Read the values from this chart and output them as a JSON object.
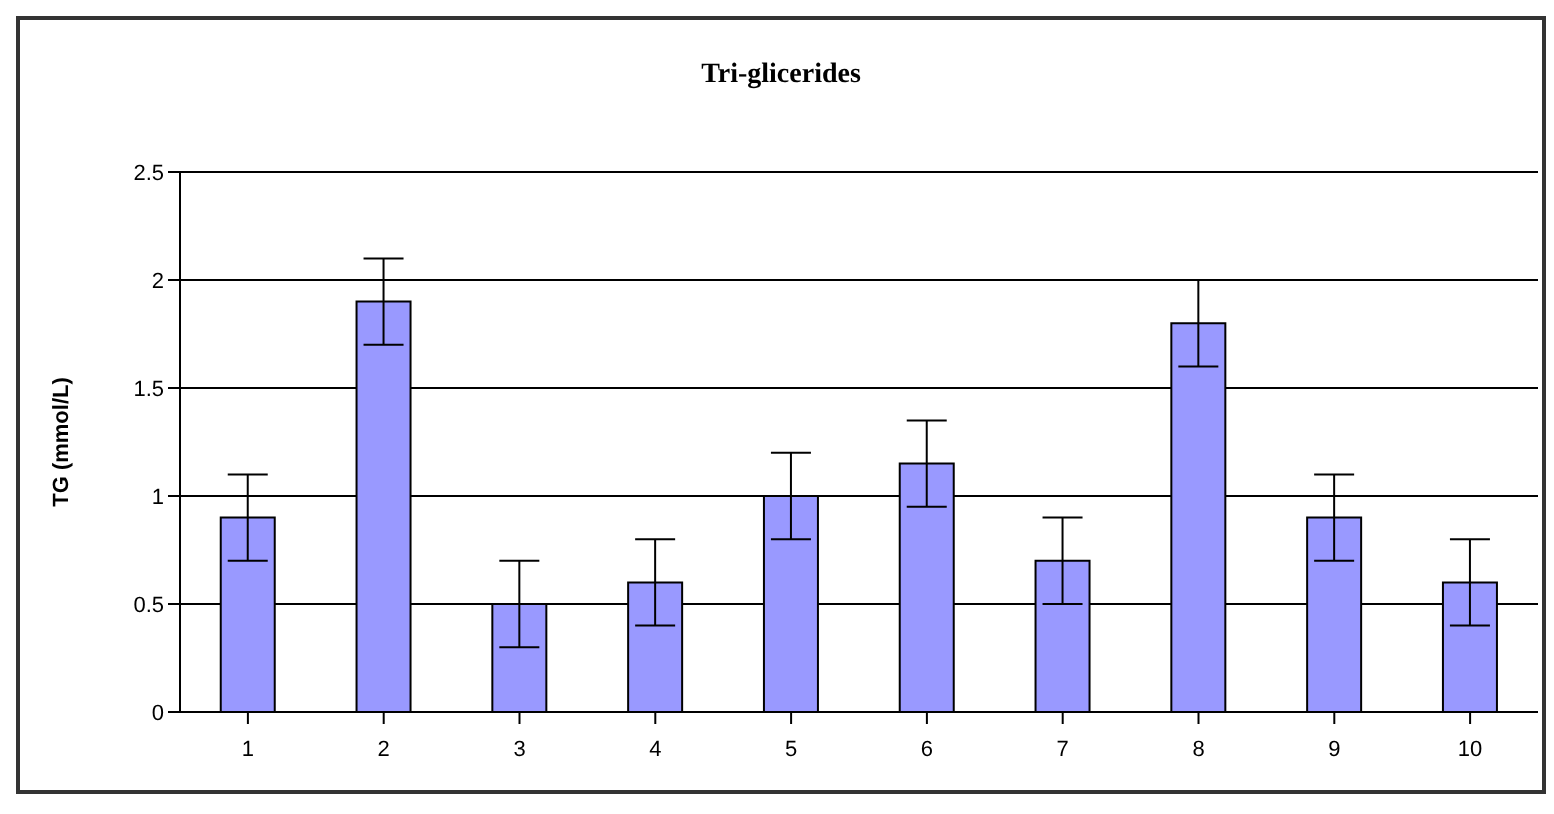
{
  "chart_data": {
    "type": "bar",
    "title": "Tri-glicerides",
    "ylabel": "TG (mmol/L)",
    "categories": [
      "1",
      "2",
      "3",
      "4",
      "5",
      "6",
      "7",
      "8",
      "9",
      "10"
    ],
    "series": [
      {
        "color": "#9999ff",
        "values": [
          0.9,
          1.9,
          0.5,
          0.6,
          1.0,
          1.15,
          0.7,
          1.8,
          0.9,
          0.6
        ],
        "errors": [
          0.2,
          0.2,
          0.2,
          0.2,
          0.2,
          0.2,
          0.2,
          0.2,
          0.2,
          0.2
        ]
      }
    ],
    "ylim": [
      0,
      2.5
    ],
    "yticks": [
      0,
      0.5,
      1,
      1.5,
      2,
      2.5
    ],
    "grid": "y"
  }
}
